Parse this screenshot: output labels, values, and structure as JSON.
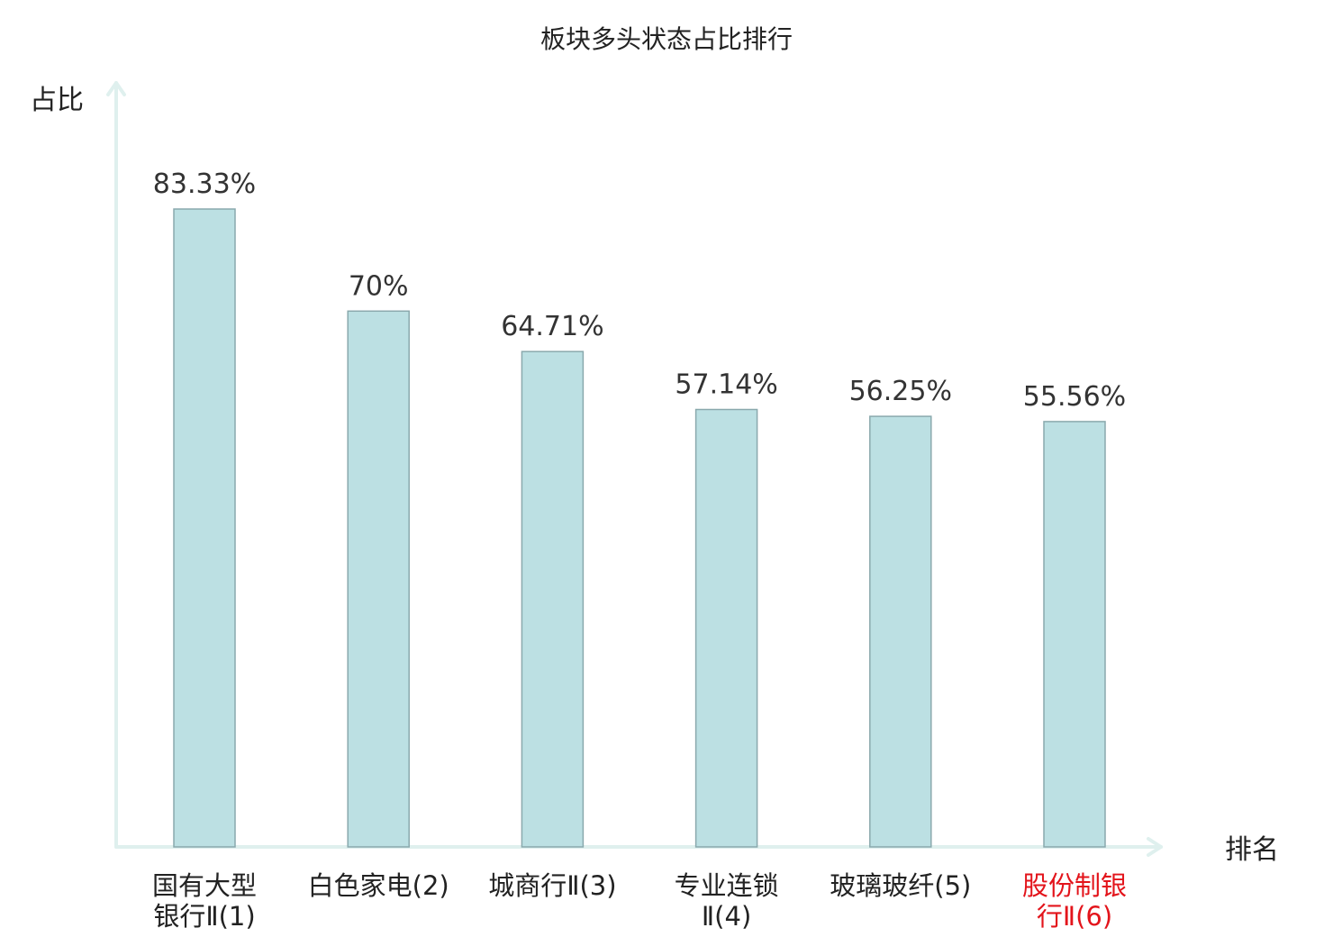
{
  "chart_data": {
    "type": "bar",
    "title": "板块多头状态占比排行",
    "ylabel": "占比",
    "xlabel": "排名",
    "ylim": [
      0,
      100
    ],
    "categories": [
      {
        "name": "国有大型银行Ⅱ",
        "rank": "(1)",
        "lines": [
          "国有大型",
          "银行Ⅱ(1)"
        ],
        "highlight": false
      },
      {
        "name": "白色家电",
        "rank": "(2)",
        "lines": [
          "白色家电(2)"
        ],
        "highlight": false
      },
      {
        "name": "城商行Ⅱ",
        "rank": "(3)",
        "lines": [
          "城商行Ⅱ(3)"
        ],
        "highlight": false
      },
      {
        "name": "专业连锁Ⅱ",
        "rank": "(4)",
        "lines": [
          "专业连锁",
          "Ⅱ(4)"
        ],
        "highlight": false
      },
      {
        "name": "玻璃玻纤",
        "rank": "(5)",
        "lines": [
          "玻璃玻纤(5)"
        ],
        "highlight": false
      },
      {
        "name": "股份制银行Ⅱ",
        "rank": "(6)",
        "lines": [
          "股份制银",
          "行Ⅱ(6)"
        ],
        "highlight": true
      }
    ],
    "values": [
      83.33,
      70,
      64.71,
      57.14,
      56.25,
      55.56
    ],
    "value_labels": [
      "83.33%",
      "70%",
      "64.71%",
      "57.14%",
      "56.25%",
      "55.56%"
    ],
    "grid": false,
    "legend": "none",
    "colors": {
      "bar_fill": "#bce0e3",
      "bar_stroke": "#8aa9ad",
      "axis": "#dff0ee",
      "highlight_text": "#e3141b",
      "normal_text": "#222222"
    }
  }
}
